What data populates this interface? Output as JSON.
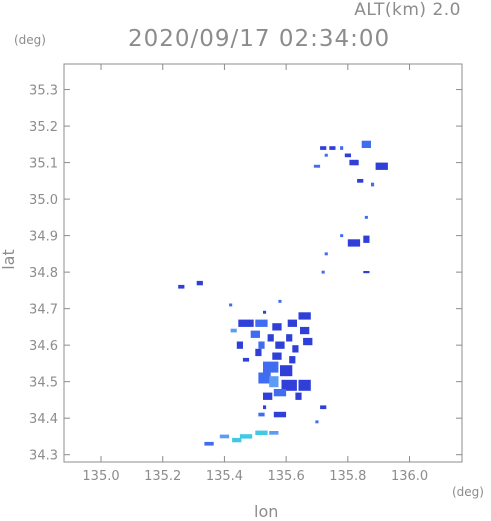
{
  "header": {
    "altitude_label": "ALT(km) 2.0",
    "timestamp": "2020/09/17 02:34:00",
    "y_unit": "(deg)",
    "x_unit": "(deg)"
  },
  "chart_data": {
    "type": "heatmap",
    "title": "2020/09/17 02:34:00",
    "xlabel": "lon",
    "ylabel": "lat",
    "xlim": [
      134.88,
      136.17
    ],
    "ylim": [
      34.28,
      35.37
    ],
    "x_ticks": [
      135.0,
      135.2,
      135.4,
      135.6,
      135.8,
      136.0
    ],
    "x_tick_labels": [
      "135.0",
      "135.2",
      "135.4",
      "135.6",
      "135.8",
      "136.0"
    ],
    "y_ticks": [
      34.3,
      34.4,
      34.5,
      34.6,
      34.7,
      34.8,
      34.9,
      35.0,
      35.1,
      35.2,
      35.3
    ],
    "y_tick_labels": [
      "34.3",
      "34.4",
      "34.5",
      "34.6",
      "34.7",
      "34.8",
      "34.9",
      "35.0",
      "35.1",
      "35.2",
      "35.3"
    ],
    "grid": false,
    "colors": {
      "dark": "#2f3fd8",
      "mid": "#3f6cf0",
      "light": "#5c9cf5",
      "cyan": "#41c8e4"
    },
    "cells": [
      {
        "lon": 135.72,
        "lat": 35.14,
        "w": 0.02,
        "h": 0.01,
        "c": "dark"
      },
      {
        "lon": 135.75,
        "lat": 35.14,
        "w": 0.02,
        "h": 0.01,
        "c": "dark"
      },
      {
        "lon": 135.73,
        "lat": 35.12,
        "w": 0.01,
        "h": 0.008,
        "c": "mid"
      },
      {
        "lon": 135.78,
        "lat": 35.14,
        "w": 0.01,
        "h": 0.01,
        "c": "mid"
      },
      {
        "lon": 135.8,
        "lat": 35.12,
        "w": 0.02,
        "h": 0.01,
        "c": "dark"
      },
      {
        "lon": 135.82,
        "lat": 35.1,
        "w": 0.03,
        "h": 0.015,
        "c": "dark"
      },
      {
        "lon": 135.86,
        "lat": 35.15,
        "w": 0.03,
        "h": 0.02,
        "c": "mid"
      },
      {
        "lon": 135.91,
        "lat": 35.09,
        "w": 0.04,
        "h": 0.02,
        "c": "dark"
      },
      {
        "lon": 135.7,
        "lat": 35.09,
        "w": 0.02,
        "h": 0.008,
        "c": "mid"
      },
      {
        "lon": 135.84,
        "lat": 35.05,
        "w": 0.02,
        "h": 0.01,
        "c": "dark"
      },
      {
        "lon": 135.88,
        "lat": 35.04,
        "w": 0.01,
        "h": 0.01,
        "c": "mid"
      },
      {
        "lon": 135.86,
        "lat": 34.95,
        "w": 0.01,
        "h": 0.008,
        "c": "mid"
      },
      {
        "lon": 135.78,
        "lat": 34.9,
        "w": 0.01,
        "h": 0.008,
        "c": "mid"
      },
      {
        "lon": 135.82,
        "lat": 34.88,
        "w": 0.04,
        "h": 0.02,
        "c": "dark"
      },
      {
        "lon": 135.86,
        "lat": 34.89,
        "w": 0.02,
        "h": 0.02,
        "c": "dark"
      },
      {
        "lon": 135.73,
        "lat": 34.85,
        "w": 0.01,
        "h": 0.008,
        "c": "mid"
      },
      {
        "lon": 135.72,
        "lat": 34.8,
        "w": 0.01,
        "h": 0.008,
        "c": "mid"
      },
      {
        "lon": 135.86,
        "lat": 34.8,
        "w": 0.02,
        "h": 0.006,
        "c": "dark"
      },
      {
        "lon": 135.32,
        "lat": 34.77,
        "w": 0.02,
        "h": 0.012,
        "c": "dark"
      },
      {
        "lon": 135.26,
        "lat": 34.76,
        "w": 0.02,
        "h": 0.01,
        "c": "dark"
      },
      {
        "lon": 135.42,
        "lat": 34.71,
        "w": 0.01,
        "h": 0.008,
        "c": "mid"
      },
      {
        "lon": 135.58,
        "lat": 34.72,
        "w": 0.01,
        "h": 0.008,
        "c": "mid"
      },
      {
        "lon": 135.53,
        "lat": 34.69,
        "w": 0.01,
        "h": 0.008,
        "c": "dark"
      },
      {
        "lon": 135.66,
        "lat": 34.68,
        "w": 0.04,
        "h": 0.02,
        "c": "dark"
      },
      {
        "lon": 135.47,
        "lat": 34.66,
        "w": 0.05,
        "h": 0.02,
        "c": "dark"
      },
      {
        "lon": 135.52,
        "lat": 34.66,
        "w": 0.04,
        "h": 0.02,
        "c": "mid"
      },
      {
        "lon": 135.57,
        "lat": 34.65,
        "w": 0.03,
        "h": 0.02,
        "c": "dark"
      },
      {
        "lon": 135.62,
        "lat": 34.66,
        "w": 0.03,
        "h": 0.02,
        "c": "dark"
      },
      {
        "lon": 135.66,
        "lat": 34.64,
        "w": 0.03,
        "h": 0.02,
        "c": "dark"
      },
      {
        "lon": 135.43,
        "lat": 34.64,
        "w": 0.02,
        "h": 0.01,
        "c": "light"
      },
      {
        "lon": 135.5,
        "lat": 34.63,
        "w": 0.03,
        "h": 0.02,
        "c": "mid"
      },
      {
        "lon": 135.55,
        "lat": 34.62,
        "w": 0.02,
        "h": 0.02,
        "c": "dark"
      },
      {
        "lon": 135.61,
        "lat": 34.62,
        "w": 0.02,
        "h": 0.02,
        "c": "dark"
      },
      {
        "lon": 135.67,
        "lat": 34.61,
        "w": 0.03,
        "h": 0.02,
        "c": "dark"
      },
      {
        "lon": 135.45,
        "lat": 34.6,
        "w": 0.02,
        "h": 0.02,
        "c": "dark"
      },
      {
        "lon": 135.52,
        "lat": 34.6,
        "w": 0.02,
        "h": 0.02,
        "c": "mid"
      },
      {
        "lon": 135.58,
        "lat": 34.6,
        "w": 0.03,
        "h": 0.02,
        "c": "dark"
      },
      {
        "lon": 135.63,
        "lat": 34.59,
        "w": 0.02,
        "h": 0.02,
        "c": "dark"
      },
      {
        "lon": 135.51,
        "lat": 34.58,
        "w": 0.02,
        "h": 0.02,
        "c": "dark"
      },
      {
        "lon": 135.57,
        "lat": 34.57,
        "w": 0.03,
        "h": 0.02,
        "c": "dark"
      },
      {
        "lon": 135.62,
        "lat": 34.56,
        "w": 0.02,
        "h": 0.02,
        "c": "dark"
      },
      {
        "lon": 135.47,
        "lat": 34.56,
        "w": 0.02,
        "h": 0.01,
        "c": "dark"
      },
      {
        "lon": 135.55,
        "lat": 34.54,
        "w": 0.05,
        "h": 0.03,
        "c": "mid"
      },
      {
        "lon": 135.6,
        "lat": 34.53,
        "w": 0.04,
        "h": 0.03,
        "c": "dark"
      },
      {
        "lon": 135.53,
        "lat": 34.51,
        "w": 0.04,
        "h": 0.03,
        "c": "mid"
      },
      {
        "lon": 135.56,
        "lat": 34.5,
        "w": 0.03,
        "h": 0.03,
        "c": "light"
      },
      {
        "lon": 135.61,
        "lat": 34.49,
        "w": 0.05,
        "h": 0.03,
        "c": "dark"
      },
      {
        "lon": 135.66,
        "lat": 34.49,
        "w": 0.04,
        "h": 0.03,
        "c": "dark"
      },
      {
        "lon": 135.58,
        "lat": 34.47,
        "w": 0.04,
        "h": 0.02,
        "c": "mid"
      },
      {
        "lon": 135.54,
        "lat": 34.46,
        "w": 0.03,
        "h": 0.02,
        "c": "dark"
      },
      {
        "lon": 135.64,
        "lat": 34.46,
        "w": 0.02,
        "h": 0.02,
        "c": "dark"
      },
      {
        "lon": 135.53,
        "lat": 34.43,
        "w": 0.01,
        "h": 0.01,
        "c": "dark"
      },
      {
        "lon": 135.58,
        "lat": 34.41,
        "w": 0.04,
        "h": 0.015,
        "c": "dark"
      },
      {
        "lon": 135.52,
        "lat": 34.41,
        "w": 0.02,
        "h": 0.01,
        "c": "mid"
      },
      {
        "lon": 135.72,
        "lat": 34.43,
        "w": 0.02,
        "h": 0.01,
        "c": "dark"
      },
      {
        "lon": 135.7,
        "lat": 34.39,
        "w": 0.01,
        "h": 0.008,
        "c": "mid"
      },
      {
        "lon": 135.4,
        "lat": 34.35,
        "w": 0.03,
        "h": 0.01,
        "c": "light"
      },
      {
        "lon": 135.44,
        "lat": 34.34,
        "w": 0.03,
        "h": 0.012,
        "c": "cyan"
      },
      {
        "lon": 135.47,
        "lat": 34.35,
        "w": 0.04,
        "h": 0.012,
        "c": "cyan"
      },
      {
        "lon": 135.52,
        "lat": 34.36,
        "w": 0.04,
        "h": 0.012,
        "c": "cyan"
      },
      {
        "lon": 135.56,
        "lat": 34.36,
        "w": 0.03,
        "h": 0.01,
        "c": "light"
      },
      {
        "lon": 135.35,
        "lat": 34.33,
        "w": 0.03,
        "h": 0.01,
        "c": "mid"
      }
    ]
  }
}
